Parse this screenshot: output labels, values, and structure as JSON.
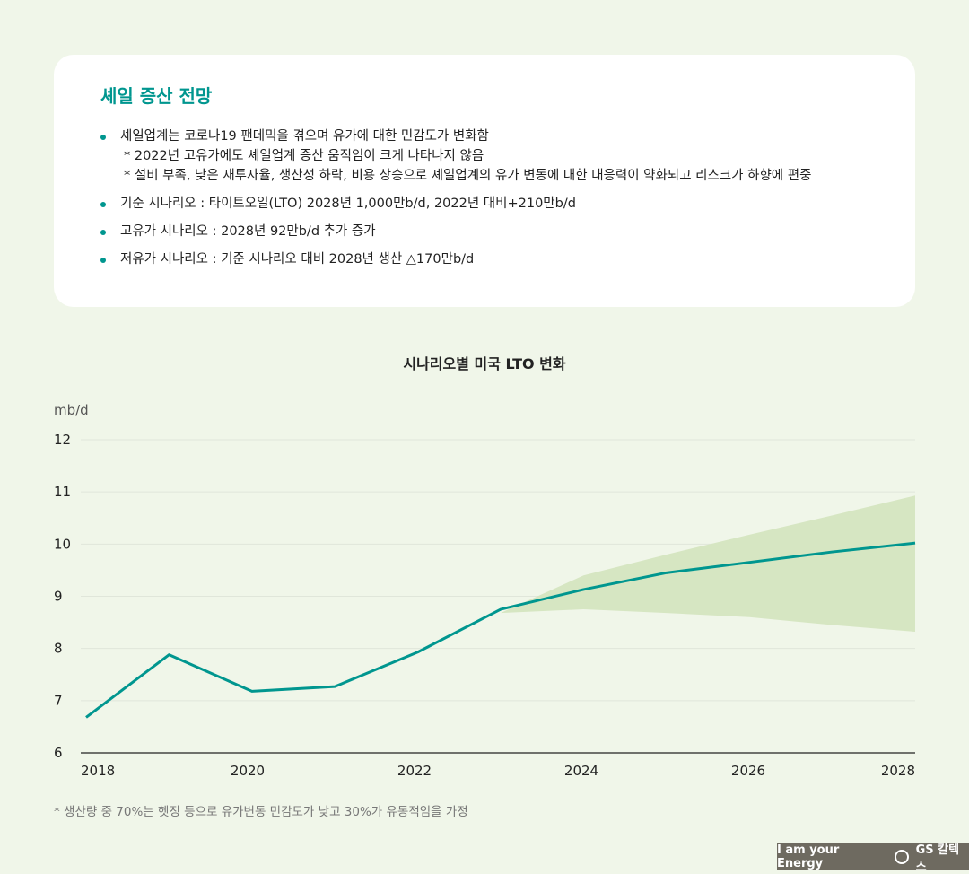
{
  "card": {
    "title": "셰일 증산 전망",
    "bullets": [
      {
        "text": "셰일업계는 코로나19 팬데믹을 겪으며 유가에 대한 민감도가 변화함",
        "subs": [
          "* 2022년 고유가에도 셰일업계 증산 움직임이 크게 나타나지 않음",
          "* 설비 부족, 낮은 재투자율, 생산성 하락, 비용 상승으로 셰일업계의 유가 변동에 대한 대응력이 약화되고 리스크가 하향에 편중"
        ]
      },
      {
        "text": "기준 시나리오 : 타이트오일(LTO) 2028년 1,000만b/d, 2022년 대비+210만b/d"
      },
      {
        "text": "고유가 시나리오 : 2028년 92만b/d 추가 증가"
      },
      {
        "text": "저유가 시나리오 : 기준 시나리오 대비 2028년 생산 △170만b/d"
      }
    ]
  },
  "chart_data": {
    "type": "line",
    "title": "시나리오별 미국 LTO 변화",
    "ylabel": "mb/d",
    "xlabel": "",
    "ylim": [
      6,
      12
    ],
    "yticks": [
      "6",
      "7",
      "8",
      "9",
      "10",
      "11",
      "12"
    ],
    "xticks": [
      "2018",
      "2020",
      "2022",
      "2024",
      "2026",
      "2028"
    ],
    "xlim": [
      2018,
      2028
    ],
    "grid": true,
    "x": [
      2018,
      2019,
      2020,
      2021,
      2022,
      2023,
      2024,
      2025,
      2026,
      2027,
      2028
    ],
    "series": [
      {
        "values": [
          6.68,
          7.88,
          7.18,
          7.27,
          7.93,
          8.75,
          9.13,
          9.45,
          9.65,
          9.85,
          10.02
        ],
        "color": "#00968f"
      }
    ],
    "band": {
      "x": [
        2023,
        2024,
        2025,
        2026,
        2027,
        2028
      ],
      "upper": [
        8.68,
        9.4,
        9.8,
        10.18,
        10.55,
        10.93
      ],
      "lower": [
        8.68,
        8.75,
        8.68,
        8.6,
        8.45,
        8.32
      ],
      "color": "#d6e6c2"
    }
  },
  "footnote": "* 생산량 중 70%는 헷징 등으로 유가변동 민감도가 낮고 30%가 유동적임을 가정",
  "logo": {
    "slogan": "I am your Energy",
    "brand": "GS 칼텍스"
  }
}
